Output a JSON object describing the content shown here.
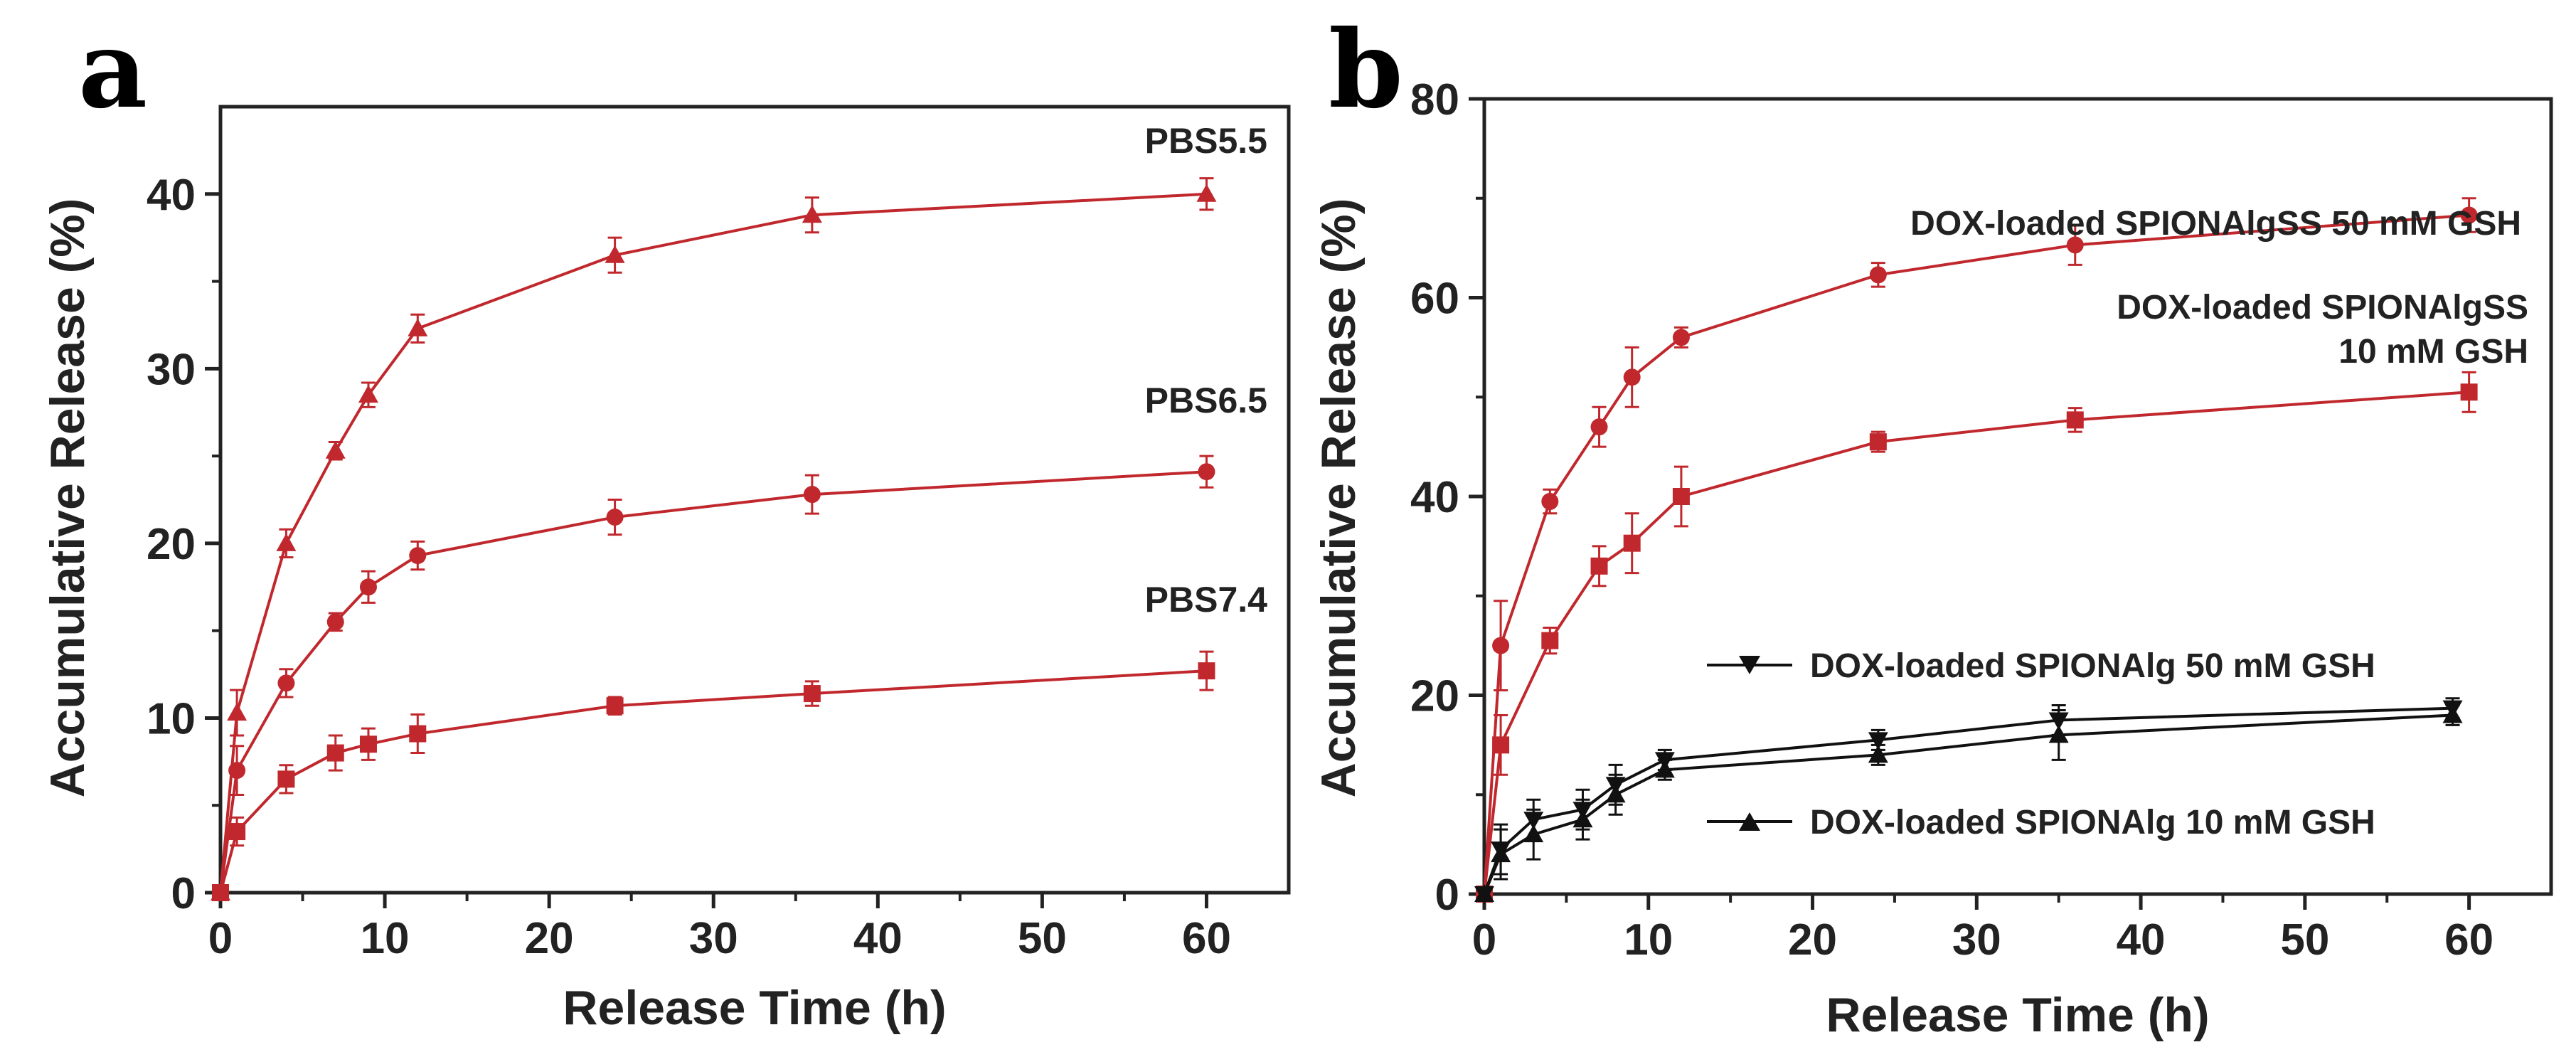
{
  "chart_data": [
    {
      "type": "line",
      "panel_label": "a",
      "xlabel": "Release Time (h)",
      "ylabel": "Accumulative Release (%)",
      "xlim": [
        0,
        65
      ],
      "ylim": [
        0,
        45
      ],
      "xticks": [
        0,
        10,
        20,
        30,
        40,
        50,
        60
      ],
      "yticks": [
        0,
        10,
        20,
        30,
        40
      ],
      "grid": false,
      "series": [
        {
          "name": "PBS5.5",
          "color": "#c0282d",
          "marker": "triangle-up",
          "x": [
            0,
            1,
            4,
            7,
            9,
            12,
            24,
            36,
            60
          ],
          "values": [
            0,
            10.3,
            20.0,
            25.3,
            28.5,
            32.3,
            36.5,
            38.8,
            40.0
          ],
          "errors": [
            0,
            1.3,
            0.8,
            0.5,
            0.7,
            0.8,
            1.0,
            1.0,
            0.9
          ]
        },
        {
          "name": "PBS6.5",
          "color": "#c0282d",
          "marker": "circle",
          "x": [
            0,
            1,
            4,
            7,
            9,
            12,
            24,
            36,
            60
          ],
          "values": [
            0,
            7.0,
            12.0,
            15.5,
            17.5,
            19.3,
            21.5,
            22.8,
            24.1
          ],
          "errors": [
            0,
            1.4,
            0.8,
            0.5,
            0.9,
            0.8,
            1.0,
            1.1,
            0.9
          ]
        },
        {
          "name": "PBS7.4",
          "color": "#c0282d",
          "marker": "square",
          "x": [
            0,
            1,
            4,
            7,
            9,
            12,
            24,
            36,
            60
          ],
          "values": [
            0,
            3.5,
            6.5,
            8.0,
            8.5,
            9.1,
            10.7,
            11.4,
            12.7
          ],
          "errors": [
            0,
            0.8,
            0.8,
            1.0,
            0.9,
            1.1,
            0.5,
            0.7,
            1.1
          ]
        }
      ],
      "annotations": [
        "PBS5.5",
        "PBS6.5",
        "PBS7.4"
      ]
    },
    {
      "type": "line",
      "panel_label": "b",
      "xlabel": "Release Time (h)",
      "ylabel": "Accumulative Release (%)",
      "xlim": [
        0,
        65
      ],
      "ylim": [
        0,
        80
      ],
      "xticks": [
        0,
        10,
        20,
        30,
        40,
        50,
        60
      ],
      "yticks": [
        0,
        20,
        40,
        60,
        80
      ],
      "grid": false,
      "series": [
        {
          "name": "DOX-loaded SPIONAlgSS  50 mM GSH",
          "color": "#c0282d",
          "marker": "circle",
          "x": [
            0,
            1,
            4,
            7,
            9,
            12,
            24,
            36,
            60
          ],
          "values": [
            0,
            25.0,
            39.5,
            47.0,
            52.0,
            56.0,
            62.3,
            65.3,
            68.3
          ],
          "errors": [
            0,
            4.5,
            1.2,
            2.0,
            3.0,
            1.0,
            1.2,
            2.0,
            1.7
          ]
        },
        {
          "name": "DOX-loaded SPIONAlgSS 10 mM GSH",
          "color": "#c0282d",
          "marker": "square",
          "x": [
            0,
            1,
            4,
            7,
            9,
            12,
            24,
            36,
            60
          ],
          "values": [
            0,
            15.0,
            25.5,
            33.0,
            35.3,
            40.0,
            45.5,
            47.7,
            50.5
          ],
          "errors": [
            0,
            3.0,
            1.3,
            2.0,
            3.0,
            3.0,
            1.0,
            1.2,
            2.0
          ]
        },
        {
          "name": "DOX-loaded SPIONAlg 50 mM GSH",
          "color": "#111111",
          "marker": "triangle-down",
          "x": [
            0,
            1,
            3,
            6,
            8,
            11,
            24,
            35,
            59
          ],
          "values": [
            0,
            4.5,
            7.5,
            8.5,
            11.0,
            13.5,
            15.5,
            17.5,
            18.7
          ],
          "errors": [
            0,
            2.5,
            2.0,
            2.0,
            2.0,
            1.0,
            1.0,
            1.5,
            1.0
          ]
        },
        {
          "name": "DOX-loaded SPIONAlg 10 mM GSH",
          "color": "#111111",
          "marker": "triangle-up",
          "x": [
            0,
            1,
            3,
            6,
            8,
            11,
            24,
            35,
            59
          ],
          "values": [
            0,
            4.0,
            6.0,
            7.5,
            10.0,
            12.5,
            14.0,
            16.0,
            18.0
          ],
          "errors": [
            0,
            2.5,
            2.5,
            2.0,
            2.0,
            1.0,
            1.0,
            2.5,
            1.0
          ]
        }
      ],
      "annotations": [
        "DOX-loaded SPIONAlgSS  50 mM GSH",
        "DOX-loaded SPIONAlgSS",
        "10 mM GSH",
        "DOX-loaded SPIONAlg 50 mM GSH",
        "DOX-loaded SPIONAlg 10 mM GSH"
      ]
    }
  ]
}
